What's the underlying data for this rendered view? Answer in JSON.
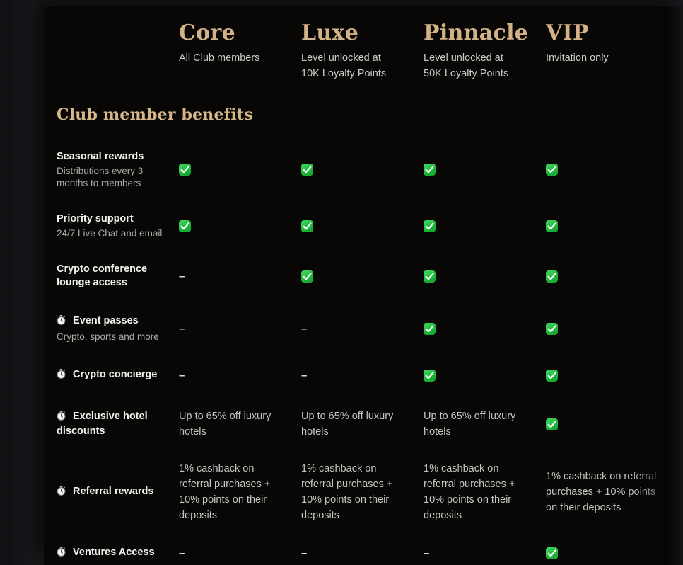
{
  "colors": {
    "panel_background": "#080706",
    "page_background": "#18181c",
    "gold_heading": "#d2b286",
    "label_text": "#f4f2ee",
    "muted_text": "#aeaca8",
    "cell_text": "#c6c4c0",
    "divider": "#4e4e4e",
    "check_green_top": "#47dc63",
    "check_green_bottom": "#11a22c"
  },
  "glyphs": {
    "dash": "–",
    "check_icon": "green-check-badge",
    "stopwatch_icon": "stopwatch"
  },
  "tiers": [
    {
      "name": "Core",
      "subtitle": "All Club members"
    },
    {
      "name": "Luxe",
      "subtitle": "Level unlocked at 10K Loyalty Points"
    },
    {
      "name": "Pinnacle",
      "subtitle": "Level unlocked at 50K Loyalty Points"
    },
    {
      "name": "VIP",
      "subtitle": "Invitation only"
    }
  ],
  "section": {
    "title": "Club member benefits"
  },
  "benefits": [
    {
      "label": "Seasonal rewards",
      "sublabel": "Distributions every 3 months to members",
      "icon": null,
      "cells": [
        "check",
        "check",
        "check",
        "check"
      ]
    },
    {
      "label": "Priority support",
      "sublabel": "24/7 Live Chat and email",
      "icon": null,
      "cells": [
        "check",
        "check",
        "check",
        "check"
      ]
    },
    {
      "label": "Crypto conference lounge access",
      "sublabel": "",
      "icon": null,
      "cells": [
        "dash",
        "check",
        "check",
        "check"
      ]
    },
    {
      "label": "Event passes",
      "sublabel": "Crypto, sports and more",
      "icon": "stopwatch",
      "cells": [
        "dash",
        "dash",
        "check",
        "check"
      ]
    },
    {
      "label": "Crypto concierge",
      "sublabel": "",
      "icon": "stopwatch",
      "cells": [
        "dash",
        "dash",
        "check",
        "check"
      ]
    },
    {
      "label": "Exclusive hotel discounts",
      "sublabel": "",
      "icon": "stopwatch",
      "cells": [
        "Up to 65% off luxury hotels",
        "Up to 65% off luxury hotels",
        "Up to 65% off luxury hotels",
        "check"
      ]
    },
    {
      "label": "Referral rewards",
      "sublabel": "",
      "icon": "stopwatch",
      "cells": [
        "1% cashback on referral purchases + 10% points on their deposits",
        "1% cashback on referral purchases + 10% points on their deposits",
        "1% cashback on referral purchases + 10% points on their deposits",
        "1% cashback on referral purchases + 10% points on their deposits"
      ]
    },
    {
      "label": "Ventures Access",
      "sublabel": "",
      "icon": "stopwatch",
      "cells": [
        "dash",
        "dash",
        "dash",
        "check"
      ]
    }
  ]
}
